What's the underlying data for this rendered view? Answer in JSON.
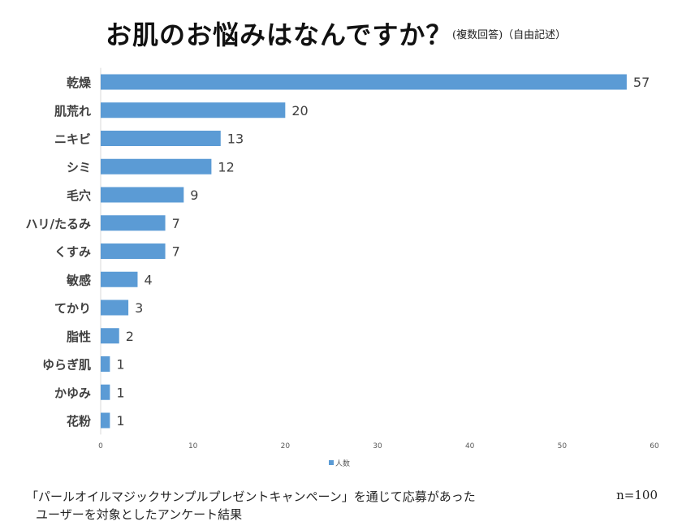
{
  "header": {
    "title": "お肌のお悩みはなんですか？",
    "subtitle": "(複数回答)（自由記述）"
  },
  "chart_data": {
    "type": "bar",
    "orientation": "horizontal",
    "categories": [
      "乾燥",
      "肌荒れ",
      "ニキビ",
      "シミ",
      "毛穴",
      "ハリ/たるみ",
      "くすみ",
      "敏感",
      "てかり",
      "脂性",
      "ゆらぎ肌",
      "かゆみ",
      "花粉"
    ],
    "series": [
      {
        "name": "人数",
        "values": [
          57,
          20,
          13,
          12,
          9,
          7,
          7,
          4,
          3,
          2,
          1,
          1,
          1
        ]
      }
    ],
    "xlim": [
      0,
      60
    ],
    "x_ticks": [
      "0",
      "10",
      "20",
      "30",
      "40",
      "50",
      "60"
    ],
    "legend_position": "bottom",
    "grid": false,
    "bar_color": "#5b9bd5"
  },
  "footer": {
    "line1": "「パールオイルマジックサンプルプレゼントキャンペーン」を通じて応募があった",
    "line2": "ユーザーを対象としたアンケート結果",
    "n_label": "n=100"
  }
}
